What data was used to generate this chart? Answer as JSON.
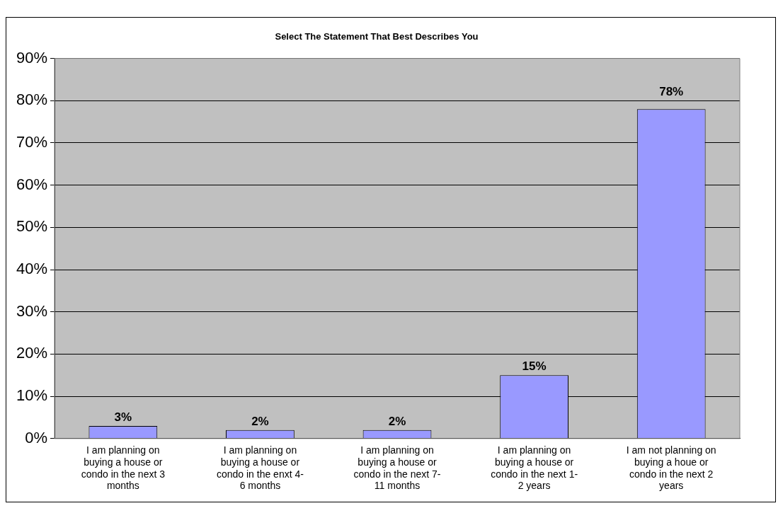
{
  "chart_data": {
    "type": "bar",
    "title": "Select The Statement That Best Describes You",
    "categories": [
      "I am planning on buying a house or condo in the next 3 months",
      "I am planning on buying a house or condo in the enxt 4-6 months",
      "I am planning on buying a house or condo in the next 7-11 months",
      "I am planning on buying a house or condo in the next 1-2 years",
      "I am not planning on buying a houe or condo in the next 2 years"
    ],
    "values": [
      3,
      2,
      2,
      15,
      78
    ],
    "value_labels": [
      "3%",
      "2%",
      "2%",
      "15%",
      "78%"
    ],
    "color": "#9999ff",
    "ylim": [
      0,
      90
    ],
    "yticks": [
      {
        "value": 0,
        "label": "0%"
      },
      {
        "value": 10,
        "label": "10%"
      },
      {
        "value": 20,
        "label": "20%"
      },
      {
        "value": 30,
        "label": "30%"
      },
      {
        "value": 40,
        "label": "40%"
      },
      {
        "value": 50,
        "label": "50%"
      },
      {
        "value": 60,
        "label": "60%"
      },
      {
        "value": 70,
        "label": "70%"
      },
      {
        "value": 80,
        "label": "80%"
      },
      {
        "value": 90,
        "label": "90%"
      }
    ],
    "grid": "y",
    "legend": false
  }
}
